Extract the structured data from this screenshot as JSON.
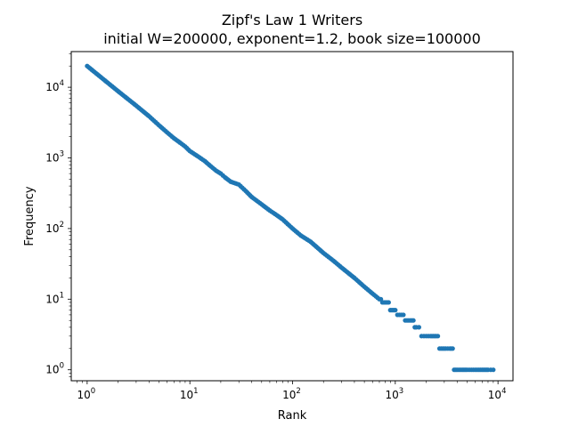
{
  "chart_data": {
    "type": "scatter",
    "title": "Zipf's Law 1 Writers",
    "subtitle": "initial W=200000, exponent=1.2, book size=100000",
    "xlabel": "Rank",
    "ylabel": "Frequency",
    "xscale": "log",
    "yscale": "log",
    "xlim": [
      0.7,
      14000
    ],
    "ylim": [
      0.7,
      32000
    ],
    "grid": false,
    "x_ticks": [
      {
        "base": "10",
        "exp": "0",
        "value": 1
      },
      {
        "base": "10",
        "exp": "1",
        "value": 10
      },
      {
        "base": "10",
        "exp": "2",
        "value": 100
      },
      {
        "base": "10",
        "exp": "3",
        "value": 1000
      },
      {
        "base": "10",
        "exp": "4",
        "value": 10000
      }
    ],
    "y_ticks": [
      {
        "base": "10",
        "exp": "0",
        "value": 1
      },
      {
        "base": "10",
        "exp": "1",
        "value": 10
      },
      {
        "base": "10",
        "exp": "2",
        "value": 100
      },
      {
        "base": "10",
        "exp": "3",
        "value": 1000
      },
      {
        "base": "10",
        "exp": "4",
        "value": 10000
      }
    ],
    "series": [
      {
        "color": "#1f77b4",
        "x": [
          1,
          2,
          3,
          4,
          5,
          6,
          7,
          8,
          9,
          10,
          12,
          14,
          16,
          18,
          20,
          22,
          25,
          30,
          35,
          40,
          50,
          60,
          70,
          80,
          100,
          120,
          150,
          200,
          250,
          300,
          400,
          500,
          600,
          700,
          800,
          1000,
          1100,
          1200,
          1300,
          1400,
          1500,
          1600,
          1700,
          1800,
          1900,
          2000,
          2200,
          2500,
          2800,
          3100,
          3400,
          3500,
          4000,
          4500,
          5000,
          5500,
          6000,
          6500,
          7000,
          7500,
          8000,
          8500,
          9000
        ],
        "y": [
          20000,
          8800,
          5500,
          3900,
          2900,
          2300,
          1900,
          1650,
          1450,
          1250,
          1050,
          900,
          760,
          660,
          600,
          530,
          460,
          420,
          340,
          280,
          220,
          180,
          155,
          135,
          100,
          80,
          65,
          45,
          35,
          28,
          20,
          15,
          12,
          10,
          9,
          7,
          6,
          6,
          5,
          5,
          5,
          4,
          4,
          3,
          3,
          3,
          3,
          3,
          2,
          2,
          2,
          2,
          1,
          1,
          1,
          1,
          1,
          1,
          1,
          1,
          1,
          1,
          1
        ]
      }
    ]
  }
}
